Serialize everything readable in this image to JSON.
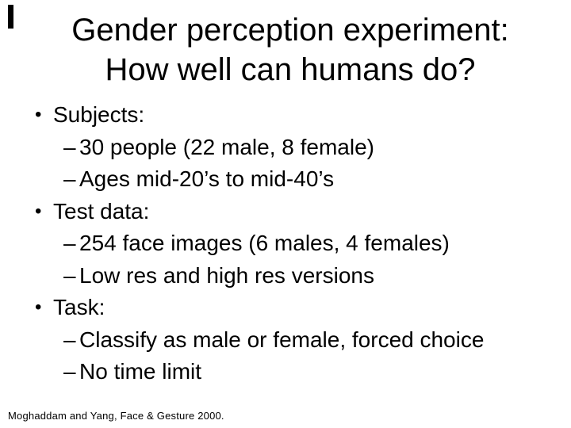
{
  "slide": {
    "title": {
      "line1": "Gender perception experiment:",
      "line2": "How well can humans do?"
    },
    "bullets": [
      {
        "level": 1,
        "marker": "•",
        "text": "Subjects:"
      },
      {
        "level": 2,
        "marker": "–",
        "text": "30 people (22 male, 8 female)"
      },
      {
        "level": 2,
        "marker": "–",
        "text": "Ages mid-20’s to mid-40’s"
      },
      {
        "level": 1,
        "marker": "•",
        "text": "Test data:"
      },
      {
        "level": 2,
        "marker": "–",
        "text": "254 face images (6 males, 4 females)"
      },
      {
        "level": 2,
        "marker": "–",
        "text": "Low res and high res versions"
      },
      {
        "level": 1,
        "marker": "•",
        "text": "Task:"
      },
      {
        "level": 2,
        "marker": "–",
        "text": "Classify as male or female, forced choice"
      },
      {
        "level": 2,
        "marker": "–",
        "text": "No time limit"
      }
    ],
    "citation": "Moghaddam and Yang, Face & Gesture 2000.",
    "colors": {
      "background": "#ffffff",
      "text": "#000000",
      "artifact_bar": "#000000"
    }
  }
}
